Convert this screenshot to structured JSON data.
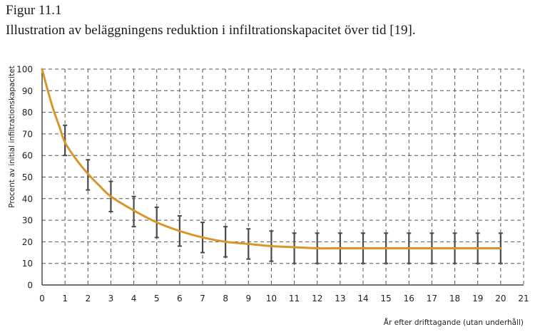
{
  "figure": {
    "label": "Figur 11.1",
    "title": "Illustration av beläggningens reduktion i infiltrationskapacitet över tid [19]."
  },
  "chart_data": {
    "type": "line",
    "xlabel": "År efter drifttagande (utan underhåll)",
    "ylabel": "Procent av initial infiltrationskapacitet",
    "xlim": [
      0,
      21
    ],
    "ylim": [
      0,
      100
    ],
    "x_ticks": [
      0,
      1,
      2,
      3,
      4,
      5,
      6,
      7,
      8,
      9,
      10,
      11,
      12,
      13,
      14,
      15,
      16,
      17,
      18,
      19,
      20,
      21
    ],
    "y_ticks": [
      0,
      10,
      20,
      30,
      40,
      50,
      60,
      70,
      80,
      90,
      100
    ],
    "grid": true,
    "grid_style": "dashed",
    "line_color": "#d9962b",
    "errorbar_color": "#4a4a4a",
    "curve": {
      "x": [
        0,
        0.25,
        0.5,
        0.75,
        1,
        1.5,
        2,
        2.5,
        3,
        4,
        5,
        6,
        7,
        8,
        9,
        10,
        11,
        12,
        13,
        14,
        15,
        16,
        17,
        18,
        19,
        20
      ],
      "y": [
        100,
        90,
        81,
        73.5,
        66,
        58,
        51.5,
        46,
        41,
        34.5,
        29,
        25,
        22,
        20,
        19,
        18,
        17.5,
        17,
        17,
        17,
        17,
        17,
        17,
        17,
        17,
        17
      ]
    },
    "error_bars": [
      {
        "x": 1,
        "low": 60,
        "high": 74
      },
      {
        "x": 2,
        "low": 44,
        "high": 58
      },
      {
        "x": 3,
        "low": 34,
        "high": 48
      },
      {
        "x": 4,
        "low": 27,
        "high": 41
      },
      {
        "x": 5,
        "low": 22,
        "high": 36
      },
      {
        "x": 6,
        "low": 18,
        "high": 32
      },
      {
        "x": 7,
        "low": 15,
        "high": 29
      },
      {
        "x": 8,
        "low": 13,
        "high": 27
      },
      {
        "x": 9,
        "low": 12,
        "high": 26
      },
      {
        "x": 10,
        "low": 11,
        "high": 25
      },
      {
        "x": 11,
        "low": 10,
        "high": 24
      },
      {
        "x": 12,
        "low": 10,
        "high": 24
      },
      {
        "x": 13,
        "low": 10,
        "high": 24
      },
      {
        "x": 14,
        "low": 10,
        "high": 24
      },
      {
        "x": 15,
        "low": 10,
        "high": 24
      },
      {
        "x": 16,
        "low": 10,
        "high": 24
      },
      {
        "x": 17,
        "low": 10,
        "high": 24
      },
      {
        "x": 18,
        "low": 10,
        "high": 24
      },
      {
        "x": 19,
        "low": 10,
        "high": 24
      },
      {
        "x": 20,
        "low": 10,
        "high": 24
      }
    ]
  }
}
